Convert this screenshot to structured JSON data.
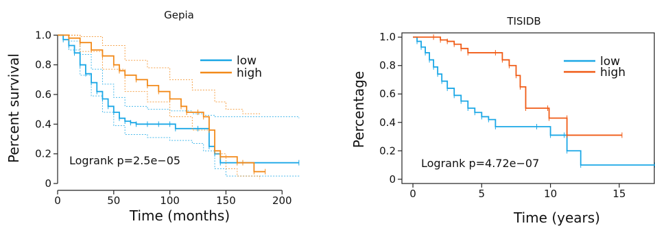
{
  "colors": {
    "low": "#1aa7e6",
    "high_gepia": "#f28a1a",
    "high_tisidb": "#f05a14",
    "axis": "#222222"
  },
  "chart_data": [
    {
      "type": "line",
      "title": "Gepia",
      "xlabel": "Time (months)",
      "ylabel": "Percent survival",
      "xlim": [
        0,
        220
      ],
      "ylim": [
        0,
        1.02
      ],
      "xticks": [
        0,
        50,
        100,
        150,
        200
      ],
      "yticks": [
        0,
        0.2,
        0.4,
        0.6,
        0.8,
        1.0
      ],
      "ytick_labels": [
        "0",
        "0.2",
        "0.4",
        "0.6",
        "0.8",
        "1.0"
      ],
      "legend_position": "top-right",
      "annotation": "Logrank p=2.5e−05",
      "series": [
        {
          "name": "low",
          "color_key": "low",
          "points": [
            [
              0,
              1.0
            ],
            [
              5,
              0.97
            ],
            [
              10,
              0.93
            ],
            [
              15,
              0.88
            ],
            [
              20,
              0.8
            ],
            [
              25,
              0.74
            ],
            [
              30,
              0.68
            ],
            [
              35,
              0.62
            ],
            [
              40,
              0.57
            ],
            [
              45,
              0.52
            ],
            [
              50,
              0.48
            ],
            [
              55,
              0.44
            ],
            [
              60,
              0.42
            ],
            [
              65,
              0.41
            ],
            [
              70,
              0.4
            ],
            [
              80,
              0.4
            ],
            [
              90,
              0.4
            ],
            [
              100,
              0.4
            ],
            [
              105,
              0.37
            ],
            [
              125,
              0.37
            ],
            [
              135,
              0.25
            ],
            [
              140,
              0.2
            ],
            [
              145,
              0.14
            ],
            [
              215,
              0.14
            ]
          ],
          "ci": [
            [
              [
                0,
                1.0
              ],
              [
                10,
                0.96
              ],
              [
                20,
                0.87
              ],
              [
                30,
                0.77
              ],
              [
                40,
                0.67
              ],
              [
                50,
                0.58
              ],
              [
                60,
                0.52
              ],
              [
                80,
                0.5
              ],
              [
                100,
                0.49
              ],
              [
                120,
                0.47
              ],
              [
                130,
                0.46
              ],
              [
                140,
                0.45
              ],
              [
                215,
                0.44
              ]
            ],
            [
              [
                0,
                1.0
              ],
              [
                10,
                0.9
              ],
              [
                20,
                0.73
              ],
              [
                30,
                0.59
              ],
              [
                40,
                0.48
              ],
              [
                50,
                0.39
              ],
              [
                60,
                0.33
              ],
              [
                80,
                0.31
              ],
              [
                100,
                0.29
              ],
              [
                120,
                0.27
              ],
              [
                130,
                0.22
              ],
              [
                140,
                0.1
              ],
              [
                150,
                0.05
              ],
              [
                215,
                0.04
              ]
            ]
          ]
        },
        {
          "name": "high",
          "color_key": "high_gepia",
          "points": [
            [
              0,
              1.0
            ],
            [
              10,
              0.98
            ],
            [
              20,
              0.95
            ],
            [
              30,
              0.9
            ],
            [
              40,
              0.86
            ],
            [
              50,
              0.8
            ],
            [
              55,
              0.76
            ],
            [
              60,
              0.73
            ],
            [
              70,
              0.7
            ],
            [
              80,
              0.66
            ],
            [
              90,
              0.62
            ],
            [
              100,
              0.57
            ],
            [
              110,
              0.52
            ],
            [
              115,
              0.48
            ],
            [
              125,
              0.48
            ],
            [
              130,
              0.45
            ],
            [
              135,
              0.36
            ],
            [
              140,
              0.22
            ],
            [
              145,
              0.18
            ],
            [
              160,
              0.14
            ],
            [
              165,
              0.14
            ],
            [
              175,
              0.08
            ],
            [
              185,
              0.08
            ]
          ],
          "ci": [
            [
              [
                0,
                1.0
              ],
              [
                20,
                0.99
              ],
              [
                40,
                0.93
              ],
              [
                60,
                0.83
              ],
              [
                80,
                0.78
              ],
              [
                100,
                0.7
              ],
              [
                120,
                0.63
              ],
              [
                140,
                0.55
              ],
              [
                150,
                0.5
              ],
              [
                165,
                0.47
              ],
              [
                180,
                0.46
              ]
            ],
            [
              [
                0,
                1.0
              ],
              [
                20,
                0.89
              ],
              [
                40,
                0.77
              ],
              [
                60,
                0.62
              ],
              [
                80,
                0.55
              ],
              [
                100,
                0.45
              ],
              [
                120,
                0.36
              ],
              [
                140,
                0.2
              ],
              [
                150,
                0.1
              ],
              [
                160,
                0.05
              ],
              [
                180,
                0.03
              ]
            ]
          ]
        }
      ]
    },
    {
      "type": "line",
      "title": "TISIDB",
      "xlabel": "Time (years)",
      "ylabel": "Percentage",
      "xlim": [
        -0.8,
        17.6
      ],
      "ylim": [
        -0.03,
        1.03
      ],
      "xticks": [
        0,
        5,
        10,
        15
      ],
      "yticks": [
        0,
        0.2,
        0.4,
        0.6,
        0.8,
        1.0
      ],
      "ytick_labels": [
        "0",
        "0.2",
        "0.4",
        "0.6",
        "0.8",
        "1.0"
      ],
      "legend_position": "top-right",
      "annotation": "Logrank p=4.72e−07",
      "series": [
        {
          "name": "low",
          "color_key": "low",
          "points": [
            [
              0,
              1.0
            ],
            [
              0.3,
              0.97
            ],
            [
              0.6,
              0.93
            ],
            [
              0.9,
              0.89
            ],
            [
              1.2,
              0.84
            ],
            [
              1.5,
              0.79
            ],
            [
              1.8,
              0.74
            ],
            [
              2.1,
              0.69
            ],
            [
              2.5,
              0.64
            ],
            [
              3.0,
              0.59
            ],
            [
              3.5,
              0.55
            ],
            [
              4.0,
              0.5
            ],
            [
              4.5,
              0.47
            ],
            [
              5.0,
              0.44
            ],
            [
              5.5,
              0.42
            ],
            [
              6.0,
              0.37
            ],
            [
              9.0,
              0.37
            ],
            [
              10.0,
              0.31
            ],
            [
              11.0,
              0.31
            ],
            [
              11.2,
              0.2
            ],
            [
              12.2,
              0.1
            ],
            [
              17.6,
              0.1
            ]
          ]
        },
        {
          "name": "high",
          "color_key": "high_tisidb",
          "points": [
            [
              0,
              1.0
            ],
            [
              1.5,
              1.0
            ],
            [
              2.0,
              0.98
            ],
            [
              2.5,
              0.97
            ],
            [
              3.0,
              0.95
            ],
            [
              3.5,
              0.92
            ],
            [
              4.0,
              0.89
            ],
            [
              6.0,
              0.89
            ],
            [
              6.5,
              0.84
            ],
            [
              7.0,
              0.8
            ],
            [
              7.5,
              0.73
            ],
            [
              7.8,
              0.65
            ],
            [
              8.2,
              0.5
            ],
            [
              9.8,
              0.5
            ],
            [
              9.9,
              0.43
            ],
            [
              11.2,
              0.43
            ],
            [
              11.2,
              0.31
            ],
            [
              15.2,
              0.31
            ]
          ]
        }
      ]
    }
  ]
}
